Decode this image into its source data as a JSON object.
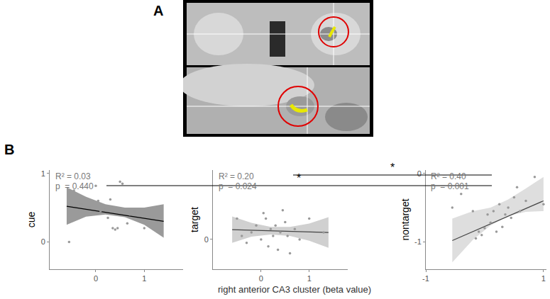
{
  "panel_labels": [
    "A",
    "B"
  ],
  "xlabel": "right anterior CA3 cluster (beta value)",
  "significance": [
    {
      "from": 1,
      "to": 2,
      "label": "*"
    },
    {
      "from": 0,
      "to": 2,
      "label": "*"
    }
  ],
  "chart_data": [
    {
      "type": "scatter",
      "ylabel": "cue",
      "annotations": [
        "R² = 0.03",
        "p  = 0.440"
      ],
      "xlim": [
        -0.95,
        1.8
      ],
      "xticks": [
        0,
        1
      ],
      "ylim": [
        -0.4,
        1.05
      ],
      "yticks": [
        0,
        1
      ],
      "points": {
        "color": "#999999",
        "x": [
          -0.55,
          -0.45,
          -0.3,
          -0.15,
          0.0,
          0.05,
          0.1,
          0.2,
          0.25,
          0.3,
          0.35,
          0.4,
          0.45,
          0.5,
          0.55,
          0.6,
          0.65,
          0.7,
          0.8,
          0.9,
          1.0,
          1.35
        ],
        "values": [
          0.0,
          0.75,
          0.55,
          0.5,
          0.82,
          0.6,
          0.45,
          0.48,
          0.35,
          0.62,
          0.2,
          0.18,
          0.2,
          0.88,
          0.85,
          0.42,
          0.27,
          0.4,
          0.45,
          0.3,
          0.2,
          0.15
        ]
      },
      "fit": {
        "color": "#000000",
        "x": [
          -0.6,
          1.4
        ],
        "values": [
          0.52,
          0.3
        ]
      },
      "band": {
        "color": "#9a9a9a",
        "x": [
          -0.6,
          -0.2,
          0.2,
          0.6,
          1.0,
          1.4
        ],
        "lower": [
          0.25,
          0.37,
          0.4,
          0.36,
          0.25,
          0.06
        ],
        "upper": [
          0.8,
          0.66,
          0.55,
          0.5,
          0.5,
          0.55
        ]
      }
    },
    {
      "type": "scatter",
      "ylabel": "target",
      "annotations": [
        "R² = 0.20",
        "p  = 0.024"
      ],
      "xlim": [
        -1.0,
        1.8
      ],
      "xticks": [
        0,
        1
      ],
      "ylim": [
        -0.43,
        1.0
      ],
      "yticks": [
        0
      ],
      "points": {
        "color": "#999999",
        "x": [
          -0.5,
          -0.4,
          -0.3,
          -0.2,
          -0.1,
          0.0,
          0.05,
          0.1,
          0.15,
          0.2,
          0.25,
          0.3,
          0.35,
          0.4,
          0.45,
          0.5,
          0.55,
          0.6,
          0.7,
          0.8,
          1.0,
          1.3
        ],
        "values": [
          0.3,
          0.05,
          -0.05,
          0.1,
          0.2,
          0.0,
          0.38,
          0.3,
          -0.1,
          0.15,
          0.05,
          0.2,
          -0.15,
          0.1,
          0.42,
          0.25,
          0.05,
          -0.2,
          0.15,
          0.0,
          0.3,
          0.1
        ]
      },
      "fit": {
        "color": "#444444",
        "x": [
          -0.6,
          1.4
        ],
        "values": [
          0.14,
          0.1
        ]
      },
      "band": {
        "color": "#d0d0d0",
        "x": [
          -0.6,
          -0.2,
          0.2,
          0.6,
          1.0,
          1.4
        ],
        "lower": [
          -0.05,
          0.04,
          0.07,
          0.05,
          -0.02,
          -0.12
        ],
        "upper": [
          0.33,
          0.24,
          0.18,
          0.18,
          0.23,
          0.32
        ]
      }
    },
    {
      "type": "scatter",
      "ylabel": "nontarget",
      "annotations": [
        "R² = 0.40",
        "p  = 0.001"
      ],
      "xlim": [
        -1.0,
        1.05
      ],
      "xticks": [
        -1,
        1
      ],
      "ylim": [
        -1.4,
        0.05
      ],
      "yticks": [
        -1,
        0
      ],
      "points": {
        "color": "#999999",
        "x": [
          -0.55,
          -0.4,
          -0.2,
          -0.15,
          -0.1,
          -0.05,
          0.0,
          0.05,
          0.1,
          0.15,
          0.2,
          0.25,
          0.3,
          0.35,
          0.4,
          0.45,
          0.5,
          0.55,
          0.6,
          0.7,
          0.85,
          1.0
        ],
        "values": [
          -0.5,
          -0.3,
          -0.55,
          -0.95,
          -0.85,
          -0.9,
          -0.8,
          -0.6,
          -0.72,
          -0.55,
          -0.85,
          -0.45,
          -0.78,
          -0.6,
          -0.5,
          -0.65,
          -0.35,
          -0.2,
          -0.55,
          -0.4,
          -0.05,
          -0.45
        ]
      },
      "fit": {
        "color": "#444444",
        "x": [
          -0.55,
          1.0
        ],
        "values": [
          -0.98,
          -0.4
        ]
      },
      "band": {
        "color": "#dedede",
        "x": [
          -0.55,
          -0.2,
          0.1,
          0.4,
          0.7,
          1.0
        ],
        "lower": [
          -1.3,
          -0.97,
          -0.76,
          -0.62,
          -0.56,
          -0.55
        ],
        "upper": [
          -0.66,
          -0.55,
          -0.5,
          -0.38,
          -0.22,
          -0.05
        ]
      }
    }
  ]
}
